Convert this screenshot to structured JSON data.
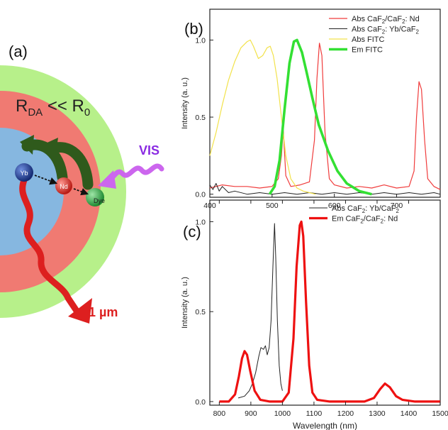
{
  "scheme": {
    "panel_label": "(a)",
    "ratio_label_main": "R",
    "ratio_label_sub": "DA",
    "ratio_label_rest": " << R",
    "ratio_label_sub2": "0",
    "ion_yb": "Yb",
    "ion_nd": "Nd",
    "dye_label": "Dye",
    "excitation_label": "VIS",
    "emission_label": "1 µm",
    "colors": {
      "outer_shell": "#b7f08a",
      "middle_shell": "#f07a72",
      "core": "#86b7e0",
      "yb_ball": "#1f3f9e",
      "nd_ball": "#e0322a",
      "dye_ball": "#33b54a",
      "arrow_green": "#2f5a1c",
      "emission_arrow": "#dd1f1f",
      "vis_wave": "#cc66ee",
      "vis_text": "#8a2be2"
    }
  },
  "chart_data": [
    {
      "type": "line",
      "panel_label": "(b)",
      "xlabel": "",
      "ylabel": "Intensity (a. u.)",
      "xlim": [
        400,
        770
      ],
      "ylim": [
        -0.02,
        1.2
      ],
      "x_ticks": [
        400,
        500,
        600,
        700
      ],
      "y_ticks": [
        0.0,
        0.5,
        1.0
      ],
      "y_tick_labels": [
        "0.0",
        "0.5",
        "1.0"
      ],
      "legend_position": "top-right",
      "series": [
        {
          "name_main": "Abs CaF",
          "name_sub1": "2",
          "name_mid": "/CaF",
          "name_sub2": "2",
          "name_end": ": Nd",
          "color": "#f03c3c",
          "width": 1.2,
          "points": [
            [
              400,
              0.04
            ],
            [
              420,
              0.06
            ],
            [
              440,
              0.05
            ],
            [
              460,
              0.05
            ],
            [
              480,
              0.04
            ],
            [
              500,
              0.05
            ],
            [
              510,
              0.1
            ],
            [
              515,
              0.25
            ],
            [
              518,
              0.42
            ],
            [
              522,
              0.12
            ],
            [
              530,
              0.05
            ],
            [
              545,
              0.06
            ],
            [
              560,
              0.08
            ],
            [
              568,
              0.35
            ],
            [
              572,
              0.75
            ],
            [
              576,
              0.98
            ],
            [
              580,
              0.9
            ],
            [
              585,
              0.4
            ],
            [
              592,
              0.1
            ],
            [
              600,
              0.06
            ],
            [
              620,
              0.04
            ],
            [
              640,
              0.05
            ],
            [
              660,
              0.04
            ],
            [
              680,
              0.06
            ],
            [
              700,
              0.04
            ],
            [
              720,
              0.05
            ],
            [
              728,
              0.15
            ],
            [
              732,
              0.5
            ],
            [
              736,
              0.73
            ],
            [
              740,
              0.68
            ],
            [
              745,
              0.35
            ],
            [
              750,
              0.1
            ],
            [
              760,
              0.05
            ],
            [
              770,
              0.03
            ]
          ]
        },
        {
          "name_main": "Abs CaF",
          "name_sub1": "2",
          "name_mid": ": Yb/CaF",
          "name_sub2": "2",
          "name_end": "",
          "color": "#222222",
          "width": 1.0,
          "points": [
            [
              400,
              0.06
            ],
            [
              405,
              0.03
            ],
            [
              410,
              0.07
            ],
            [
              415,
              0.02
            ],
            [
              420,
              0.05
            ],
            [
              430,
              0.01
            ],
            [
              440,
              0.02
            ],
            [
              460,
              0.0
            ],
            [
              480,
              0.01
            ],
            [
              500,
              0.0
            ],
            [
              520,
              0.01
            ],
            [
              540,
              0.0
            ],
            [
              560,
              0.01
            ],
            [
              580,
              0.0
            ],
            [
              600,
              0.01
            ],
            [
              620,
              0.0
            ],
            [
              640,
              0.01
            ],
            [
              660,
              0.0
            ],
            [
              680,
              0.01
            ],
            [
              700,
              0.0
            ],
            [
              720,
              0.01
            ],
            [
              740,
              0.0
            ],
            [
              760,
              0.01
            ],
            [
              770,
              0.0
            ]
          ]
        },
        {
          "name_main": "Abs FITC",
          "name_sub1": "",
          "name_mid": "",
          "name_sub2": "",
          "name_end": "",
          "color": "#f2e24a",
          "width": 1.2,
          "points": [
            [
              400,
              0.25
            ],
            [
              410,
              0.4
            ],
            [
              420,
              0.58
            ],
            [
              430,
              0.74
            ],
            [
              440,
              0.86
            ],
            [
              450,
              0.95
            ],
            [
              460,
              0.99
            ],
            [
              465,
              1.0
            ],
            [
              470,
              0.96
            ],
            [
              478,
              0.88
            ],
            [
              485,
              0.9
            ],
            [
              492,
              0.95
            ],
            [
              497,
              0.96
            ],
            [
              502,
              0.9
            ],
            [
              508,
              0.75
            ],
            [
              515,
              0.5
            ],
            [
              522,
              0.25
            ],
            [
              530,
              0.1
            ],
            [
              540,
              0.04
            ],
            [
              550,
              0.02
            ],
            [
              560,
              0.01
            ],
            [
              570,
              0.0
            ]
          ]
        },
        {
          "name_main": "Em FITC",
          "name_sub1": "",
          "name_mid": "",
          "name_sub2": "",
          "name_end": "",
          "color": "#33e033",
          "width": 3.6,
          "points": [
            [
              496,
              0.0
            ],
            [
              504,
              0.05
            ],
            [
              512,
              0.22
            ],
            [
              520,
              0.55
            ],
            [
              528,
              0.85
            ],
            [
              535,
              0.99
            ],
            [
              540,
              1.0
            ],
            [
              548,
              0.92
            ],
            [
              555,
              0.8
            ],
            [
              565,
              0.62
            ],
            [
              575,
              0.45
            ],
            [
              590,
              0.28
            ],
            [
              605,
              0.15
            ],
            [
              620,
              0.07
            ],
            [
              640,
              0.02
            ],
            [
              660,
              0.0
            ]
          ]
        }
      ]
    },
    {
      "type": "line",
      "panel_label": "(c)",
      "xlabel": "Wavelength (nm)",
      "ylabel": "Intensity (a. u.)",
      "xlim": [
        770,
        1500
      ],
      "ylim": [
        -0.02,
        1.12
      ],
      "x_ticks": [
        800,
        900,
        1000,
        1100,
        1200,
        1300,
        1400,
        1500
      ],
      "y_ticks": [
        0.0,
        0.5,
        1.0
      ],
      "y_tick_labels": [
        "0.0",
        "0.5",
        "1.0"
      ],
      "legend_position": "top-right",
      "series": [
        {
          "name_main": "Abs CaF",
          "name_sub1": "2",
          "name_mid": ": Yb/CaF",
          "name_sub2": "2",
          "name_end": "",
          "color": "#222222",
          "width": 1.0,
          "points": [
            [
              860,
              0.02
            ],
            [
              880,
              0.03
            ],
            [
              895,
              0.06
            ],
            [
              905,
              0.1
            ],
            [
              915,
              0.16
            ],
            [
              925,
              0.25
            ],
            [
              932,
              0.3
            ],
            [
              940,
              0.29
            ],
            [
              946,
              0.31
            ],
            [
              952,
              0.26
            ],
            [
              958,
              0.3
            ],
            [
              964,
              0.45
            ],
            [
              970,
              0.75
            ],
            [
              975,
              0.99
            ],
            [
              979,
              0.8
            ],
            [
              984,
              0.45
            ],
            [
              990,
              0.2
            ],
            [
              995,
              0.1
            ],
            [
              1000,
              0.06
            ]
          ]
        },
        {
          "name_main": "Em CaF",
          "name_sub1": "2",
          "name_mid": "/CaF",
          "name_sub2": "2",
          "name_end": ": Nd",
          "color": "#ee1111",
          "width": 3.2,
          "points": [
            [
              800,
              0.0
            ],
            [
              830,
              0.0
            ],
            [
              850,
              0.04
            ],
            [
              862,
              0.14
            ],
            [
              872,
              0.24
            ],
            [
              880,
              0.28
            ],
            [
              888,
              0.26
            ],
            [
              898,
              0.17
            ],
            [
              912,
              0.06
            ],
            [
              930,
              0.01
            ],
            [
              960,
              0.0
            ],
            [
              1000,
              0.0
            ],
            [
              1020,
              0.05
            ],
            [
              1035,
              0.35
            ],
            [
              1045,
              0.75
            ],
            [
              1055,
              0.98
            ],
            [
              1060,
              1.0
            ],
            [
              1066,
              0.92
            ],
            [
              1075,
              0.55
            ],
            [
              1085,
              0.2
            ],
            [
              1095,
              0.05
            ],
            [
              1110,
              0.01
            ],
            [
              1150,
              0.0
            ],
            [
              1200,
              0.0
            ],
            [
              1260,
              0.0
            ],
            [
              1290,
              0.02
            ],
            [
              1310,
              0.07
            ],
            [
              1325,
              0.1
            ],
            [
              1340,
              0.08
            ],
            [
              1360,
              0.03
            ],
            [
              1380,
              0.01
            ],
            [
              1420,
              0.0
            ],
            [
              1500,
              0.0
            ]
          ]
        }
      ]
    }
  ]
}
